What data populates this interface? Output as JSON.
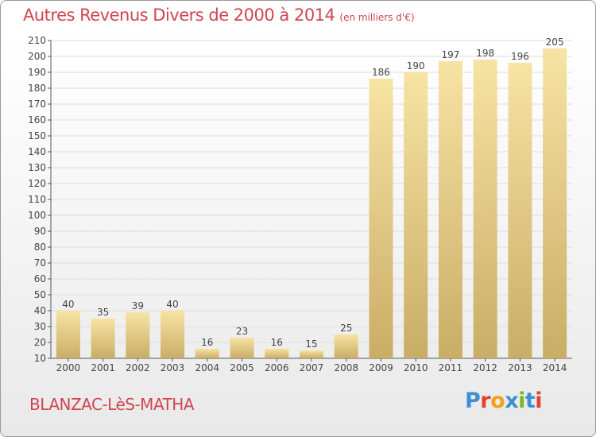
{
  "header": {
    "title": "Autres Revenus Divers de 2000 à 2014",
    "subtitle": "(en milliers d'€)"
  },
  "footer": {
    "commune": "BLANZAC-LèS-MATHA",
    "logo_text": "Proxiti",
    "logo_colors": [
      "#3b8fd3",
      "#e2422f",
      "#f2a01d",
      "#3b8fd3",
      "#76b82a",
      "#3b8fd3",
      "#e2422f"
    ]
  },
  "colors": {
    "title": "#d0454f",
    "bar_light": "#f7e3a3",
    "bar_dark": "#c9ad66",
    "axis": "#555555",
    "grid": "#dddddd"
  },
  "chart_data": {
    "type": "bar",
    "categories": [
      "2000",
      "2001",
      "2002",
      "2003",
      "2004",
      "2005",
      "2006",
      "2007",
      "2008",
      "2009",
      "2010",
      "2011",
      "2012",
      "2013",
      "2014"
    ],
    "values": [
      40,
      35,
      39,
      40,
      16,
      23,
      16,
      15,
      25,
      186,
      190,
      197,
      198,
      196,
      205
    ],
    "value_labels": [
      "40",
      "35",
      "39",
      "40",
      "16",
      "23",
      "16",
      "15",
      "25",
      "186",
      "190",
      "197",
      "198",
      "196",
      "205"
    ],
    "yticks": [
      "10",
      "20",
      "30",
      "40",
      "50",
      "60",
      "70",
      "80",
      "90",
      "100",
      "110",
      "120",
      "130",
      "140",
      "150",
      "160",
      "170",
      "180",
      "190",
      "200",
      "210"
    ],
    "ylim": [
      10,
      210
    ],
    "grid": true
  }
}
